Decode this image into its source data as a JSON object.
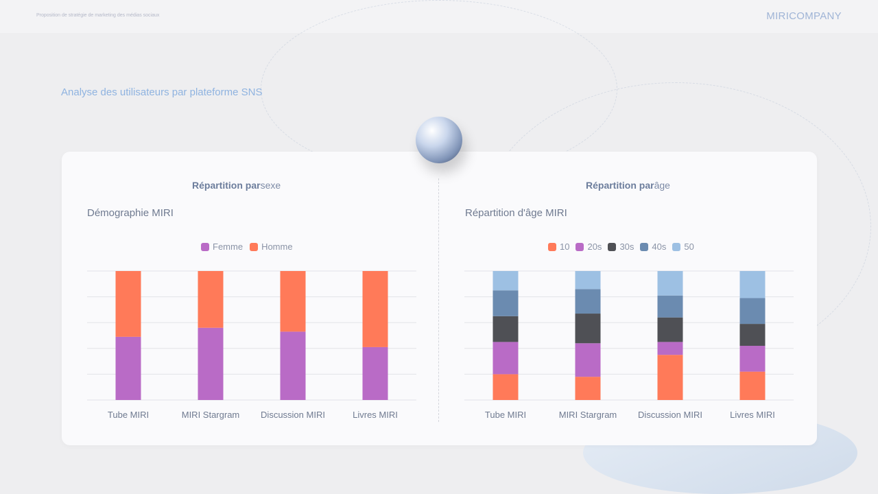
{
  "header": {
    "subtitle": "Proposition de stratégie de marketing des médias sociaux",
    "brand": "MIRICOMPANY"
  },
  "page_heading": "Analyse des utilisateurs par plateforme SNS",
  "sections": [
    {
      "title_bold": "Répartition par",
      "title_rest": "sexe"
    },
    {
      "title_bold": "Répartition par",
      "title_rest": "âge"
    }
  ],
  "chart_data": [
    {
      "type": "bar",
      "stacked": true,
      "title": "Démographie MIRI",
      "categories": [
        "Tube MIRI",
        "MIRI Stargram",
        "Discussion MIRI",
        "Livres MIRI"
      ],
      "ylim": [
        0,
        100
      ],
      "grid": true,
      "legend_position": "top",
      "series": [
        {
          "name": "Femme",
          "color": "#b96bc6",
          "values": [
            49,
            56,
            53,
            41
          ]
        },
        {
          "name": "Homme",
          "color": "#ff7a59",
          "values": [
            51,
            44,
            47,
            59
          ]
        }
      ]
    },
    {
      "type": "bar",
      "stacked": true,
      "title": "Répartition d'âge MIRI",
      "categories": [
        "Tube MIRI",
        "MIRI Stargram",
        "Discussion MIRI",
        "Livres MIRI"
      ],
      "ylim": [
        0,
        100
      ],
      "grid": true,
      "legend_position": "top",
      "series": [
        {
          "name": "10",
          "color": "#ff7a59",
          "values": [
            20,
            18,
            35,
            22
          ]
        },
        {
          "name": "20s",
          "color": "#b96bc6",
          "values": [
            25,
            26,
            10,
            20
          ]
        },
        {
          "name": "30s",
          "color": "#4f5055",
          "values": [
            20,
            23,
            19,
            17
          ]
        },
        {
          "name": "40s",
          "color": "#6b8bb0",
          "values": [
            20,
            19,
            17,
            20
          ]
        },
        {
          "name": "50",
          "color": "#9dc0e3",
          "values": [
            15,
            14,
            19,
            21
          ]
        }
      ]
    }
  ]
}
